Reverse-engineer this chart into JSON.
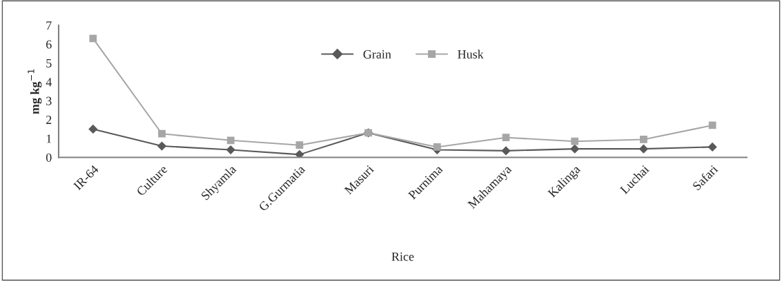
{
  "chart_data": {
    "type": "line",
    "xlabel": "Rice",
    "ylabel": "mg kg$^{−1}$",
    "categories": [
      "IR-64",
      "Culture",
      "Shyamla",
      "G.Gurmatia",
      "Masuri",
      "Purnima",
      "Mahamaya",
      "Kalinga",
      "Luchai",
      "Safari"
    ],
    "series": [
      {
        "name": "Grain",
        "color": "#595959",
        "marker": "diamond",
        "values": [
          1.5,
          0.6,
          0.4,
          0.15,
          1.3,
          0.4,
          0.35,
          0.45,
          0.45,
          0.55
        ]
      },
      {
        "name": "Husk",
        "color": "#a6a6a6",
        "marker": "square",
        "values": [
          6.3,
          1.25,
          0.9,
          0.65,
          1.3,
          0.55,
          1.05,
          0.85,
          0.95,
          1.7
        ]
      }
    ],
    "ylim": [
      0,
      7
    ],
    "yticks": [
      0,
      1,
      2,
      3,
      4,
      5,
      6,
      7
    ],
    "grid": false,
    "legend": "top",
    "line_style": "solid"
  }
}
